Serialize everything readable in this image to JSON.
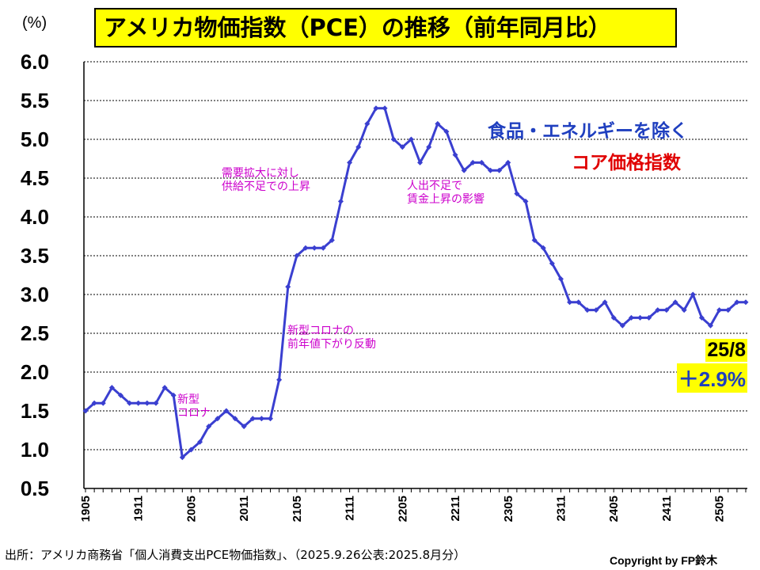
{
  "title": "アメリカ物価指数（PCE）の推移（前年同月比）",
  "unit": "(%)",
  "legend": {
    "line1": "食品・エネルギーを除く",
    "line2": "コア価格指数"
  },
  "latest": {
    "date": "25/8",
    "value": "＋2.9%"
  },
  "annotations": {
    "covid": {
      "l1": "新型",
      "l2": "コロナ"
    },
    "demand": {
      "l1": "需要拡大に対し",
      "l2": "供給不足での上昇"
    },
    "rebound": {
      "l1": "新型コロナの",
      "l2": "前年値下がり反動"
    },
    "labor": {
      "l1": "人出不足で",
      "l2": "賃金上昇の影響"
    }
  },
  "source": "出所：アメリカ商務省「個人消費支出PCE物価指数」、（2025.9.26公表:2025.8月分）",
  "copyright": "Copyright by FP鈴木",
  "colors": {
    "line": "#3a3fd0",
    "grid": "#000000",
    "highlight": "#ffff00",
    "annotation": "#cc00cc"
  },
  "chart_data": {
    "type": "line",
    "title": "アメリカ物価指数（PCE）の推移（前年同月比）",
    "ylabel": "(%)",
    "ylim": [
      0.5,
      6.0
    ],
    "yticks": [
      "6.0",
      "5.5",
      "5.0",
      "4.5",
      "4.0",
      "3.5",
      "3.0",
      "2.5",
      "2.0",
      "1.5",
      "1.0",
      "0.5"
    ],
    "xtick_labels": [
      "1905",
      "1911",
      "2005",
      "2011",
      "2105",
      "2111",
      "2205",
      "2211",
      "2305",
      "2311",
      "2405",
      "2411",
      "2505"
    ],
    "x": [
      "1905",
      "1906",
      "1907",
      "1908",
      "1909",
      "1910",
      "1911",
      "1912",
      "2001",
      "2002",
      "2003",
      "2004",
      "2005",
      "2006",
      "2007",
      "2008",
      "2009",
      "2010",
      "2011",
      "2012",
      "2101",
      "2102",
      "2103",
      "2104",
      "2105",
      "2106",
      "2107",
      "2108",
      "2109",
      "2110",
      "2111",
      "2112",
      "2201",
      "2202",
      "2203",
      "2204",
      "2205",
      "2206",
      "2207",
      "2208",
      "2209",
      "2210",
      "2211",
      "2212",
      "2301",
      "2302",
      "2303",
      "2304",
      "2305",
      "2306",
      "2307",
      "2308",
      "2309",
      "2310",
      "2311",
      "2312",
      "2401",
      "2402",
      "2403",
      "2404",
      "2405",
      "2406",
      "2407",
      "2408",
      "2409",
      "2410",
      "2411",
      "2412",
      "2501",
      "2502",
      "2503",
      "2504",
      "2505",
      "2506",
      "2507",
      "2508"
    ],
    "series": [
      {
        "values": [
          1.5,
          1.6,
          1.6,
          1.8,
          1.7,
          1.6,
          1.6,
          1.6,
          1.6,
          1.8,
          1.7,
          0.9,
          1.0,
          1.1,
          1.3,
          1.4,
          1.5,
          1.4,
          1.3,
          1.4,
          1.4,
          1.4,
          1.9,
          3.1,
          3.5,
          3.6,
          3.6,
          3.6,
          3.7,
          4.2,
          4.7,
          4.9,
          5.2,
          5.4,
          5.4,
          5.0,
          4.9,
          5.0,
          4.7,
          4.9,
          5.2,
          5.1,
          4.8,
          4.6,
          4.7,
          4.7,
          4.6,
          4.6,
          4.7,
          4.3,
          4.2,
          3.7,
          3.6,
          3.4,
          3.2,
          2.9,
          2.9,
          2.8,
          2.8,
          2.9,
          2.7,
          2.6,
          2.7,
          2.7,
          2.7,
          2.8,
          2.8,
          2.9,
          2.8,
          3.0,
          2.7,
          2.6,
          2.8,
          2.8,
          2.9,
          2.9
        ]
      }
    ]
  }
}
